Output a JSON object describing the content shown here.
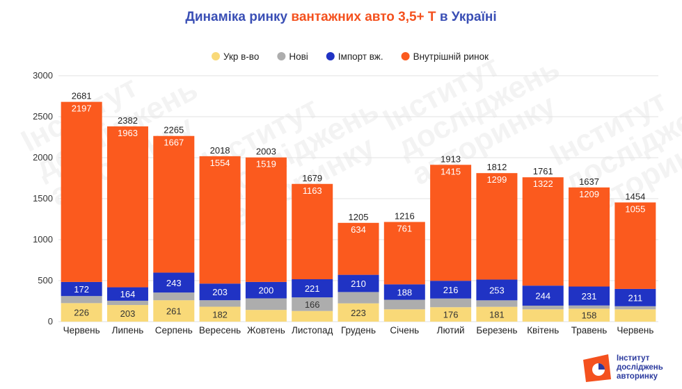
{
  "title": {
    "part1": "Динаміка ринку",
    "part2": "вантажних авто 3,5+ Т",
    "part3": "в Україні"
  },
  "watermark": {
    "line1": "Інститут",
    "line2": "досліджень",
    "line3": "авторинку"
  },
  "logo": {
    "line1": "Інститут",
    "line2": "досліджень",
    "line3": "авторинку"
  },
  "chart_data": {
    "type": "bar",
    "stacked": true,
    "categories": [
      "Червень",
      "Липень",
      "Серпень",
      "Вересень",
      "Жовтень",
      "Листопад",
      "Грудень",
      "Січень",
      "Лютий",
      "Березень",
      "Квітень",
      "Травень",
      "Червень"
    ],
    "series": [
      {
        "name": "Укр в-во",
        "color": "#f9d978",
        "values": [
          226,
          203,
          261,
          182,
          143,
          130,
          223,
          150,
          176,
          181,
          150,
          158,
          150
        ],
        "labels": [
          "226",
          "203",
          "261",
          "182",
          "",
          "",
          "223",
          "",
          "176",
          "181",
          "",
          "158",
          ""
        ]
      },
      {
        "name": "Нові",
        "color": "#adadad",
        "values": [
          86,
          52,
          94,
          79,
          141,
          166,
          138,
          117,
          106,
          79,
          45,
          39,
          38
        ],
        "labels": [
          "",
          "",
          "",
          "",
          "",
          "166",
          "",
          "",
          "",
          "",
          "",
          "",
          ""
        ]
      },
      {
        "name": "Імпорт вж.",
        "color": "#2033c4",
        "values": [
          172,
          164,
          243,
          203,
          200,
          221,
          210,
          188,
          216,
          253,
          244,
          231,
          211
        ],
        "labels": [
          "172",
          "164",
          "243",
          "203",
          "200",
          "221",
          "210",
          "188",
          "216",
          "253",
          "244",
          "231",
          "211"
        ]
      },
      {
        "name": "Внутрішній ринок",
        "color": "#fb5a1e",
        "values": [
          2197,
          1963,
          1667,
          1554,
          1519,
          1163,
          634,
          761,
          1415,
          1299,
          1322,
          1209,
          1055
        ],
        "labels": [
          "2197",
          "1963",
          "1667",
          "1554",
          "1519",
          "1163",
          "634",
          "761",
          "1415",
          "1299",
          "1322",
          "1209",
          "1055"
        ]
      }
    ],
    "totals": [
      2681,
      2382,
      2265,
      2018,
      2003,
      1679,
      1205,
      1216,
      1913,
      1812,
      1761,
      1637,
      1454
    ],
    "yticks": [
      0,
      500,
      1000,
      1500,
      2000,
      2500,
      3000
    ],
    "ylim": [
      0,
      3000
    ],
    "grid": true,
    "legend_position": "top"
  }
}
